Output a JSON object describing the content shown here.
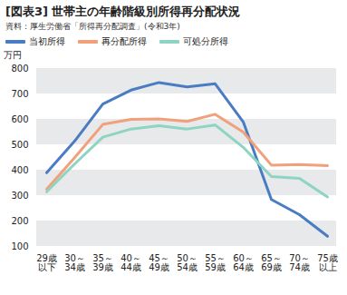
{
  "chart_data": {
    "type": "line",
    "title": "[図表3] 世帯主の年齢階級別所得再分配状況",
    "subtitle": "資料：厚生労働省「所得再分配調査」(令和3年)",
    "y_label": "万円",
    "categories": [
      "29歳\n以下",
      "30～\n34歳",
      "35～\n39歳",
      "40～\n44歳",
      "45～\n49歳",
      "50～\n54歳",
      "55～\n59歳",
      "60～\n64歳",
      "65～\n69歳",
      "70～\n74歳",
      "75歳\n以上"
    ],
    "series": [
      {
        "name": "当初所得",
        "color": "#4a7cc4",
        "values": [
          390,
          515,
          660,
          715,
          745,
          728,
          740,
          590,
          285,
          225,
          140
        ]
      },
      {
        "name": "再分配所得",
        "color": "#f0a07a",
        "values": [
          325,
          450,
          580,
          600,
          602,
          592,
          620,
          550,
          420,
          422,
          418
        ]
      },
      {
        "name": "可処分所得",
        "color": "#8ed4c2",
        "values": [
          315,
          425,
          530,
          562,
          575,
          562,
          578,
          490,
          375,
          368,
          295
        ]
      }
    ],
    "ylim": [
      100,
      800
    ],
    "yticks": [
      100,
      200,
      300,
      400,
      500,
      600,
      700,
      800
    ],
    "grid": true,
    "legend": "top"
  }
}
